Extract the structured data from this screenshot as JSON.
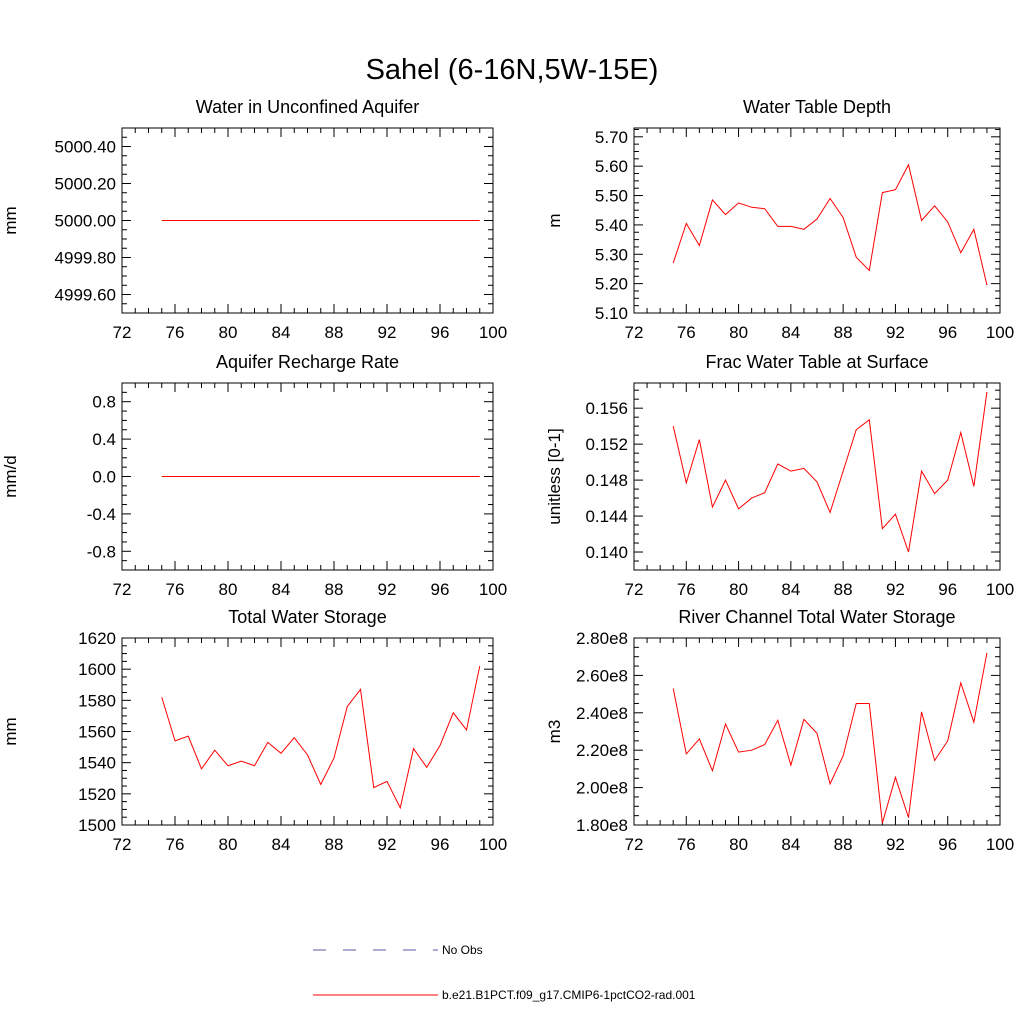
{
  "figure": {
    "title": "Sahel (6-16N,5W-15E)"
  },
  "legend": {
    "entries": [
      {
        "label": "No Obs",
        "color": "#5a5aa0",
        "style": "dashed"
      },
      {
        "label": "b.e21.B1PCT.f09_g17.CMIP6-1pctCO2-rad.001",
        "color": "#ff0000",
        "style": "solid"
      }
    ]
  },
  "chart_data": [
    {
      "type": "line",
      "title": "Water in Unconfined Aquifer",
      "xlabel": "",
      "ylabel": "mm",
      "xlim": [
        72,
        100
      ],
      "ylim": [
        4999.5,
        5000.5
      ],
      "xticks": [
        72,
        76,
        80,
        84,
        88,
        92,
        96,
        100
      ],
      "xtick_labels": [
        "72",
        "76",
        "80",
        "84",
        "88",
        "92",
        "96",
        "100"
      ],
      "yticks": [
        4999.6,
        4999.8,
        5000.0,
        5000.2,
        5000.4
      ],
      "ytick_labels": [
        "4999.60",
        "4999.80",
        "5000.00",
        "5000.20",
        "5000.40"
      ],
      "x": [
        75,
        76,
        77,
        78,
        79,
        80,
        81,
        82,
        83,
        84,
        85,
        86,
        87,
        88,
        89,
        90,
        91,
        92,
        93,
        94,
        95,
        96,
        97,
        98,
        99
      ],
      "series": [
        {
          "name": "b.e21.B1PCT.f09_g17.CMIP6-1pctCO2-rad.001",
          "color": "#ff0000",
          "values": [
            5000.0,
            5000.0,
            5000.0,
            5000.0,
            5000.0,
            5000.0,
            5000.0,
            5000.0,
            5000.0,
            5000.0,
            5000.0,
            5000.0,
            5000.0,
            5000.0,
            5000.0,
            5000.0,
            5000.0,
            5000.0,
            5000.0,
            5000.0,
            5000.0,
            5000.0,
            5000.0,
            5000.0,
            5000.0
          ]
        }
      ]
    },
    {
      "type": "line",
      "title": "Water Table Depth",
      "xlabel": "",
      "ylabel": "m",
      "xlim": [
        72,
        100
      ],
      "ylim": [
        5.1,
        5.73
      ],
      "xticks": [
        72,
        76,
        80,
        84,
        88,
        92,
        96,
        100
      ],
      "xtick_labels": [
        "72",
        "76",
        "80",
        "84",
        "88",
        "92",
        "96",
        "100"
      ],
      "yticks": [
        5.1,
        5.2,
        5.3,
        5.4,
        5.5,
        5.6,
        5.7
      ],
      "ytick_labels": [
        "5.10",
        "5.20",
        "5.30",
        "5.40",
        "5.50",
        "5.60",
        "5.70"
      ],
      "x": [
        75,
        76,
        77,
        78,
        79,
        80,
        81,
        82,
        83,
        84,
        85,
        86,
        87,
        88,
        89,
        90,
        91,
        92,
        93,
        94,
        95,
        96,
        97,
        98,
        99
      ],
      "series": [
        {
          "name": "b.e21.B1PCT.f09_g17.CMIP6-1pctCO2-rad.001",
          "color": "#ff0000",
          "values": [
            5.27,
            5.405,
            5.33,
            5.485,
            5.435,
            5.475,
            5.46,
            5.455,
            5.395,
            5.395,
            5.385,
            5.42,
            5.49,
            5.425,
            5.29,
            5.245,
            5.51,
            5.52,
            5.605,
            5.415,
            5.465,
            5.41,
            5.305,
            5.385,
            5.195
          ]
        }
      ]
    },
    {
      "type": "line",
      "title": "Aquifer Recharge Rate",
      "xlabel": "",
      "ylabel": "mm/d",
      "xlim": [
        72,
        100
      ],
      "ylim": [
        -1.0,
        1.0
      ],
      "xticks": [
        72,
        76,
        80,
        84,
        88,
        92,
        96,
        100
      ],
      "xtick_labels": [
        "72",
        "76",
        "80",
        "84",
        "88",
        "92",
        "96",
        "100"
      ],
      "yticks": [
        -0.8,
        -0.4,
        0.0,
        0.4,
        0.8
      ],
      "ytick_labels": [
        "-0.8",
        "-0.4",
        "0.0",
        "0.4",
        "0.8"
      ],
      "x": [
        75,
        76,
        77,
        78,
        79,
        80,
        81,
        82,
        83,
        84,
        85,
        86,
        87,
        88,
        89,
        90,
        91,
        92,
        93,
        94,
        95,
        96,
        97,
        98,
        99
      ],
      "series": [
        {
          "name": "b.e21.B1PCT.f09_g17.CMIP6-1pctCO2-rad.001",
          "color": "#ff0000",
          "values": [
            0.0,
            0.0,
            0.0,
            0.0,
            0.0,
            0.0,
            0.0,
            0.0,
            0.0,
            0.0,
            0.0,
            0.0,
            0.0,
            0.0,
            0.0,
            0.0,
            0.0,
            0.0,
            0.0,
            0.0,
            0.0,
            0.0,
            0.0,
            0.0,
            0.0
          ]
        }
      ]
    },
    {
      "type": "line",
      "title": "Frac Water Table at Surface",
      "xlabel": "",
      "ylabel": "unitless [0-1]",
      "xlim": [
        72,
        100
      ],
      "ylim": [
        0.138,
        0.1588
      ],
      "xticks": [
        72,
        76,
        80,
        84,
        88,
        92,
        96,
        100
      ],
      "xtick_labels": [
        "72",
        "76",
        "80",
        "84",
        "88",
        "92",
        "96",
        "100"
      ],
      "yticks": [
        0.14,
        0.144,
        0.148,
        0.152,
        0.156
      ],
      "ytick_labels": [
        "0.140",
        "0.144",
        "0.148",
        "0.152",
        "0.156"
      ],
      "x": [
        75,
        76,
        77,
        78,
        79,
        80,
        81,
        82,
        83,
        84,
        85,
        86,
        87,
        88,
        89,
        90,
        91,
        92,
        93,
        94,
        95,
        96,
        97,
        98,
        99
      ],
      "series": [
        {
          "name": "b.e21.B1PCT.f09_g17.CMIP6-1pctCO2-rad.001",
          "color": "#ff0000",
          "values": [
            0.154,
            0.1477,
            0.1525,
            0.145,
            0.148,
            0.1448,
            0.146,
            0.1466,
            0.1498,
            0.149,
            0.1493,
            0.1478,
            0.1444,
            0.149,
            0.1536,
            0.1547,
            0.1426,
            0.1442,
            0.14,
            0.149,
            0.1465,
            0.148,
            0.1533,
            0.1473,
            0.1578
          ]
        }
      ]
    },
    {
      "type": "line",
      "title": "Total Water Storage",
      "xlabel": "",
      "ylabel": "mm",
      "xlim": [
        72,
        100
      ],
      "ylim": [
        1500,
        1620
      ],
      "xticks": [
        72,
        76,
        80,
        84,
        88,
        92,
        96,
        100
      ],
      "xtick_labels": [
        "72",
        "76",
        "80",
        "84",
        "88",
        "92",
        "96",
        "100"
      ],
      "yticks": [
        1500,
        1520,
        1540,
        1560,
        1580,
        1600,
        1620
      ],
      "ytick_labels": [
        "1500",
        "1520",
        "1540",
        "1560",
        "1580",
        "1600",
        "1620"
      ],
      "x": [
        75,
        76,
        77,
        78,
        79,
        80,
        81,
        82,
        83,
        84,
        85,
        86,
        87,
        88,
        89,
        90,
        91,
        92,
        93,
        94,
        95,
        96,
        97,
        98,
        99
      ],
      "series": [
        {
          "name": "b.e21.B1PCT.f09_g17.CMIP6-1pctCO2-rad.001",
          "color": "#ff0000",
          "values": [
            1582,
            1554,
            1557,
            1536,
            1548,
            1538,
            1541,
            1538,
            1553,
            1546,
            1556,
            1545,
            1526,
            1543,
            1576,
            1587,
            1524,
            1528,
            1511,
            1549,
            1537,
            1551,
            1572,
            1561,
            1602
          ]
        }
      ]
    },
    {
      "type": "line",
      "title": "River Channel Total Water Storage",
      "xlabel": "",
      "ylabel": "m3",
      "xlim": [
        72,
        100
      ],
      "ylim": [
        180000000,
        280000000
      ],
      "xticks": [
        72,
        76,
        80,
        84,
        88,
        92,
        96,
        100
      ],
      "xtick_labels": [
        "72",
        "76",
        "80",
        "84",
        "88",
        "92",
        "96",
        "100"
      ],
      "yticks": [
        180000000,
        200000000,
        220000000,
        240000000,
        260000000,
        280000000
      ],
      "ytick_labels": [
        "1.80e8",
        "2.00e8",
        "2.20e8",
        "2.40e8",
        "2.60e8",
        "2.80e8"
      ],
      "x": [
        75,
        76,
        77,
        78,
        79,
        80,
        81,
        82,
        83,
        84,
        85,
        86,
        87,
        88,
        89,
        90,
        91,
        92,
        93,
        94,
        95,
        96,
        97,
        98,
        99
      ],
      "series": [
        {
          "name": "b.e21.B1PCT.f09_g17.CMIP6-1pctCO2-rad.001",
          "color": "#ff0000",
          "values": [
            253000000,
            218000000,
            226000000,
            209000000,
            234000000,
            219000000,
            220000000,
            223000000,
            236000000,
            212000000,
            236500000,
            229000000,
            202000000,
            217000000,
            245000000,
            245000000,
            181000000,
            205500000,
            184000000,
            240500000,
            214500000,
            225000000,
            256000000,
            235000000,
            272000000
          ]
        }
      ]
    }
  ]
}
